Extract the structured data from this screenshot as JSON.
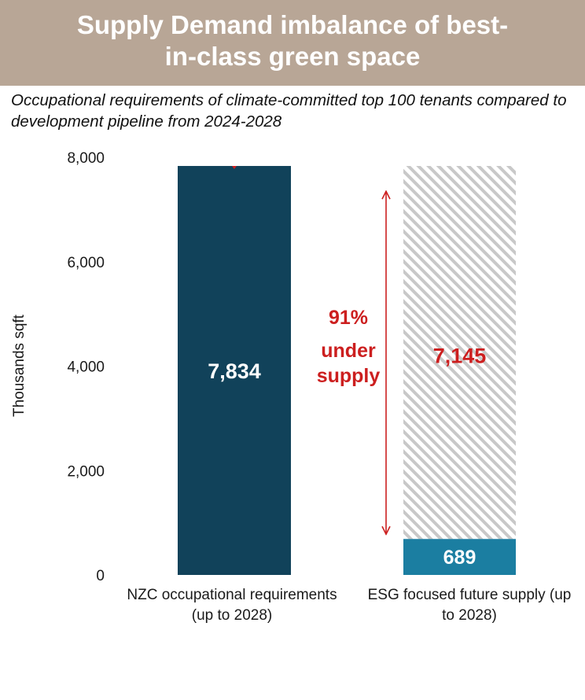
{
  "header": {
    "title": "Supply Demand imbalance of best-in-class green space"
  },
  "subtitle": "Occupational requirements of climate-committed top 100 tenants compared to development pipeline from 2024-2028",
  "colors": {
    "banner": "#b8a696",
    "demand_bar": "#11425a",
    "supply_bar": "#1b7ea1",
    "gap_hatch": "#c8c8c8",
    "accent_red": "#cc1f1f"
  },
  "chart_data": {
    "type": "bar",
    "ylabel": "Thousands sqft",
    "ylim": [
      0,
      8000
    ],
    "yticks": [
      0,
      2000,
      4000,
      6000,
      8000
    ],
    "ytick_labels": [
      "0",
      "2,000",
      "4,000",
      "6,000",
      "8,000"
    ],
    "categories": [
      "NZC occupational requirements (up to 2028)",
      "ESG focused future supply (up to 2028)"
    ],
    "bars": [
      {
        "category": "NZC occupational requirements (up to 2028)",
        "value": 7834,
        "label": "7,834"
      },
      {
        "category": "ESG focused future supply (up to 2028)",
        "value": 689,
        "label": "689"
      }
    ],
    "gap": {
      "from": 689,
      "to": 7834,
      "value": 7145,
      "label": "7,145",
      "pattern": "hatched"
    },
    "annotation": {
      "lines": [
        "91%",
        "under",
        "supply"
      ]
    },
    "grid": false,
    "legend": "none"
  }
}
